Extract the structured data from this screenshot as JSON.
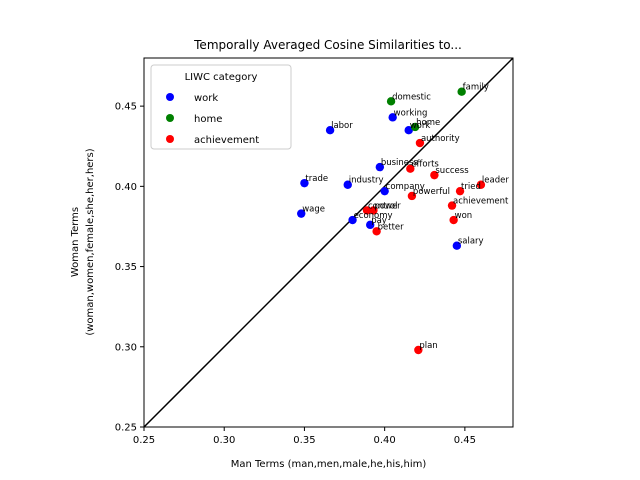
{
  "chart_data": {
    "type": "scatter",
    "title": "Temporally Averaged Cosine Similarities to...",
    "xlabel": "Man Terms (man,men,male,he,his,him)",
    "ylabel_line1": "Woman Terms",
    "ylabel_line2": "(woman,women,female,she,her,hers)",
    "xlim": [
      0.25,
      0.48
    ],
    "ylim": [
      0.25,
      0.48
    ],
    "xticks": [
      0.25,
      0.3,
      0.35,
      0.4,
      0.45
    ],
    "yticks": [
      0.25,
      0.3,
      0.35,
      0.4,
      0.45
    ],
    "xtick_labels": [
      "0.25",
      "0.30",
      "0.35",
      "0.40",
      "0.45"
    ],
    "ytick_labels": [
      "0.25",
      "0.30",
      "0.35",
      "0.40",
      "0.45"
    ],
    "legend": {
      "title": "LIWC category",
      "placement": "top-left",
      "entries": [
        {
          "name": "work",
          "color": "#0000ff"
        },
        {
          "name": "home",
          "color": "#008000"
        },
        {
          "name": "achievement",
          "color": "#ff0000"
        }
      ]
    },
    "reference_line": "y = x",
    "series": [
      {
        "name": "work",
        "color": "#0000ff",
        "points": [
          {
            "label": "labor",
            "x": 0.366,
            "y": 0.435
          },
          {
            "label": "working",
            "x": 0.405,
            "y": 0.443
          },
          {
            "label": "work",
            "x": 0.415,
            "y": 0.435
          },
          {
            "label": "business",
            "x": 0.397,
            "y": 0.412
          },
          {
            "label": "trade",
            "x": 0.35,
            "y": 0.402
          },
          {
            "label": "industry",
            "x": 0.377,
            "y": 0.401
          },
          {
            "label": "company",
            "x": 0.4,
            "y": 0.397
          },
          {
            "label": "wage",
            "x": 0.348,
            "y": 0.383
          },
          {
            "label": "economy",
            "x": 0.38,
            "y": 0.379
          },
          {
            "label": "pay",
            "x": 0.391,
            "y": 0.376
          },
          {
            "label": "salary",
            "x": 0.445,
            "y": 0.363
          }
        ]
      },
      {
        "name": "home",
        "color": "#008000",
        "points": [
          {
            "label": "domestic",
            "x": 0.404,
            "y": 0.453
          },
          {
            "label": "family",
            "x": 0.448,
            "y": 0.459
          },
          {
            "label": "home",
            "x": 0.419,
            "y": 0.437
          }
        ]
      },
      {
        "name": "achievement",
        "color": "#ff0000",
        "points": [
          {
            "label": "authority",
            "x": 0.422,
            "y": 0.427
          },
          {
            "label": "efforts",
            "x": 0.416,
            "y": 0.411
          },
          {
            "label": "success",
            "x": 0.431,
            "y": 0.407
          },
          {
            "label": "leader",
            "x": 0.46,
            "y": 0.401
          },
          {
            "label": "tried",
            "x": 0.447,
            "y": 0.397
          },
          {
            "label": "powerful",
            "x": 0.417,
            "y": 0.394
          },
          {
            "label": "achievement",
            "x": 0.442,
            "y": 0.388
          },
          {
            "label": "won",
            "x": 0.443,
            "y": 0.379
          },
          {
            "label": "control",
            "x": 0.389,
            "y": 0.385
          },
          {
            "label": "power",
            "x": 0.393,
            "y": 0.385
          },
          {
            "label": "better",
            "x": 0.395,
            "y": 0.372
          },
          {
            "label": "plan",
            "x": 0.421,
            "y": 0.298
          }
        ]
      }
    ]
  }
}
